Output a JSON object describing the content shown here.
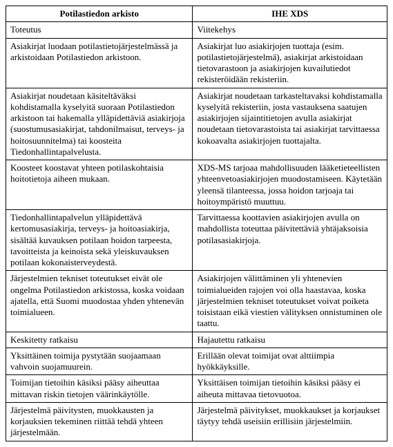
{
  "table": {
    "headers": {
      "left": "Potilastiedon arkisto",
      "right": "IHE XDS"
    },
    "rows": [
      {
        "left": "Toteutus",
        "right": "Viitekehys"
      },
      {
        "left": "Asiakirjat luodaan potilastietojärjestelmässä ja arkistoidaan Potilastiedon arkistoon.",
        "right": "Asiakirjat luo asiakirjojen tuottaja (esim. potilastietojärjestelmä), asiakirjat arkistoidaan tietovarastoon ja asiakirjojen kuvailutiedot rekisteröidään rekisteriin."
      },
      {
        "left": "Asiakirjat noudetaan käsiteltäväksi kohdistamalla kyselyitä suoraan Potilastiedon arkistoon tai hakemalla ylläpidettäviä asiakirjoja (suostumusasiakirjat, tahdonilmaisut, terveys- ja hoitosuunnitelma) tai koosteita Tiedonhallintapalvelusta.",
        "right": "Asiakirjat noudetaan tarkasteltavaksi kohdistamalla kyselyitä rekisteriin, josta vastauksena saatujen asiakirjojen sijaintitietojen avulla asiakirjat noudetaan tietovarastoista tai asiakirjat tarvittaessa kokoavalta asiakirjojen tuottajalta."
      },
      {
        "left": "Koosteet koostavat yhteen potilaskohtaisia hoitotietoja aiheen mukaan.",
        "right": "XDS-MS tarjoaa mahdollisuuden lääketieteellisten yhteenvetoasiakirjojen muodostamiseen. Käytetään yleensä tilanteessa, jossa hoidon tarjoaja tai hoitoympäristö muuttuu."
      },
      {
        "left": "Tiedonhallintapalvelun ylläpidettävä kertomusasiakirja, terveys- ja hoitoasiakirja, sisältää kuvauksen potilaan hoidon tarpeesta, tavoitteista ja keinoista sekä yleiskuvauksen potilaan kokonaisterveydestä.",
        "right": "Tarvittaessa koottavien asiakirjojen avulla on mahdollista toteuttaa päivitettäviä yhtäjaksoisia potilasasiakirjoja."
      },
      {
        "left": "Järjestelmien tekniset toteutukset eivät ole ongelma Potilastiedon arkistossa, koska voidaan ajatella, että Suomi muodostaa yhden yhtenevän toimialueen.",
        "right": "Asiakirjojen välittäminen yli yhtenevien toimialueiden rajojen voi olla haastavaa, koska järjestelmien tekniset toteutukset voivat poiketa toisistaan eikä viestien välityksen onnistuminen ole taattu."
      },
      {
        "left": "Keskitetty ratkaisu",
        "right": "Hajautettu ratkaisu"
      },
      {
        "left": "Yksittäinen toimija pystytään suojaamaan vahvoin suojamuurein.",
        "right": "Erillään olevat toimijat ovat alttiimpia hyökkäyksille."
      },
      {
        "left": "Toimijan tietoihin käsiksi pääsy aiheuttaa mittavan riskin tietojen väärinkäytölle.",
        "right": "Yksittäisen toimijan tietoihin käsiksi pääsy ei aiheuta mittavaa tietovuotoa."
      },
      {
        "left": "Järjestelmä päivitysten, muokkausten ja korjauksien tekeminen riittää tehdä yhteen järjestelmään.",
        "right": "Järjestelmä päivitykset, muokkaukset ja korjaukset täytyy tehdä useisiin erillisiin järjestelmiin."
      }
    ]
  }
}
